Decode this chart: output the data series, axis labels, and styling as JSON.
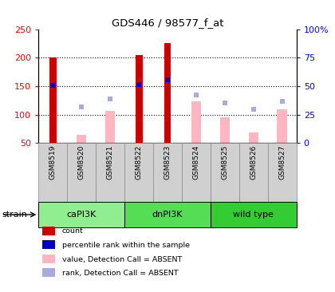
{
  "title": "GDS446 / 98577_f_at",
  "samples": [
    "GSM8519",
    "GSM8520",
    "GSM8521",
    "GSM8522",
    "GSM8523",
    "GSM8524",
    "GSM8525",
    "GSM8526",
    "GSM8527"
  ],
  "groups": [
    {
      "name": "caPI3K",
      "indices": [
        0,
        1,
        2
      ],
      "color": "#90EE90"
    },
    {
      "name": "dnPI3K",
      "indices": [
        3,
        4,
        5
      ],
      "color": "#55DD55"
    },
    {
      "name": "wild type",
      "indices": [
        6,
        7,
        8
      ],
      "color": "#33CC33"
    }
  ],
  "count_values": [
    201,
    null,
    null,
    204,
    226,
    null,
    null,
    null,
    null
  ],
  "count_color": "#CC0000",
  "absent_value_bars": [
    null,
    65,
    107,
    null,
    null,
    123,
    96,
    68,
    109
  ],
  "absent_value_color": "#FFB6C1",
  "rank_dots": [
    152,
    113,
    127,
    153,
    161,
    134,
    121,
    110,
    124
  ],
  "rank_dot_color": "#AAAADD",
  "percentile_rank_dots": [
    152,
    null,
    null,
    153,
    161,
    null,
    null,
    null,
    null
  ],
  "percentile_rank_color": "#0000CC",
  "ylim_left": [
    50,
    250
  ],
  "ylim_right": [
    0,
    100
  ],
  "yticks_left": [
    50,
    100,
    150,
    200,
    250
  ],
  "ytick_labels_right": [
    "0",
    "25",
    "50",
    "75",
    "100%"
  ],
  "ytick_vals_right": [
    0,
    25,
    50,
    75,
    100
  ],
  "grid_vals": [
    100,
    150,
    200
  ],
  "bar_width": 0.35,
  "count_bar_width": 0.25,
  "legend_items": [
    {
      "color": "#CC0000",
      "label": "count"
    },
    {
      "color": "#0000CC",
      "label": "percentile rank within the sample"
    },
    {
      "color": "#FFB6C1",
      "label": "value, Detection Call = ABSENT"
    },
    {
      "color": "#AAAADD",
      "label": "rank, Detection Call = ABSENT"
    }
  ]
}
